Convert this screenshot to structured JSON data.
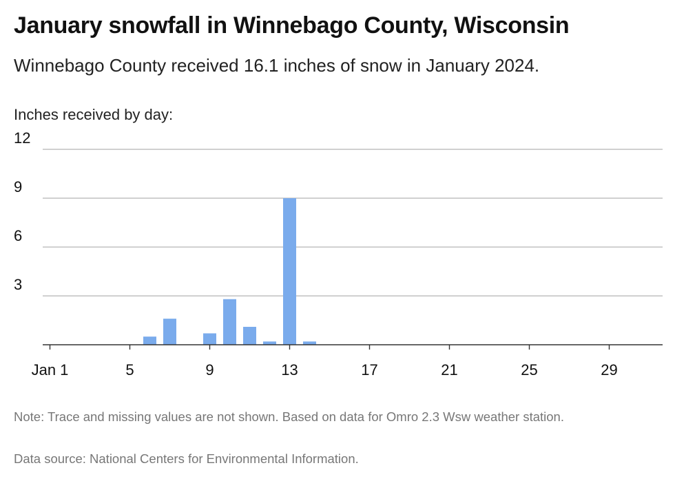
{
  "title": "January snowfall in Winnebago County, Wisconsin",
  "subtitle": "Winnebago County received 16.1 inches of snow in January 2024.",
  "note": "Note: Trace and missing values are not shown. Based on data for Omro 2.3 Wsw weather station.",
  "source": "Data source: National Centers for Environmental Information.",
  "colors": {
    "bar": "#7aabec",
    "grid": "#b5b5b5",
    "axis": "#333333"
  },
  "chart_data": {
    "type": "bar",
    "title": "January snowfall in Winnebago County, Wisconsin",
    "ylabel": "Inches received by day:",
    "xlabel": "",
    "ylim": [
      0,
      12
    ],
    "yticks": [
      3,
      6,
      9,
      12
    ],
    "xtick_days": [
      1,
      5,
      9,
      13,
      17,
      21,
      25,
      29
    ],
    "xtick_labels": [
      "Jan 1",
      "5",
      "9",
      "13",
      "17",
      "21",
      "25",
      "29"
    ],
    "x_range_days": [
      1,
      31
    ],
    "grid": true,
    "legend": "none",
    "points": [
      {
        "day": 6,
        "value": 0.5
      },
      {
        "day": 7,
        "value": 1.6
      },
      {
        "day": 9,
        "value": 0.7
      },
      {
        "day": 10,
        "value": 2.8
      },
      {
        "day": 11,
        "value": 1.1
      },
      {
        "day": 12,
        "value": 0.2
      },
      {
        "day": 13,
        "value": 9.0
      },
      {
        "day": 14,
        "value": 0.2
      }
    ]
  }
}
